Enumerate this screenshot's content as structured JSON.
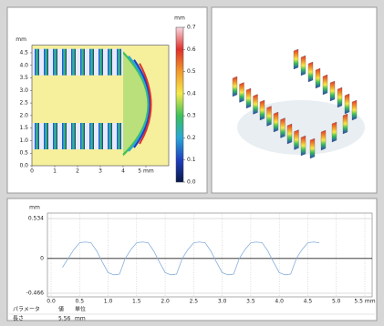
{
  "chart_data": [
    {
      "type": "heatmap",
      "y_label": "mm",
      "xlim": [
        0,
        6
      ],
      "xticks": [
        0,
        1,
        2,
        3,
        4,
        {
          "value": 5,
          "label": "5 mm"
        }
      ],
      "ylim": [
        0,
        4.8
      ],
      "yticks": [
        {
          "value": 0,
          "label": "0.0"
        },
        0.5,
        {
          "value": 1,
          "label": "1.0"
        },
        1.5,
        {
          "value": 2,
          "label": "2.0"
        },
        2.5,
        {
          "value": 3,
          "label": "3.0"
        },
        3.5,
        {
          "value": 4,
          "label": "4.0"
        },
        4.5
      ],
      "colorbar": {
        "label": "mm",
        "lim": [
          0,
          0.7
        ],
        "ticks": [
          {
            "value": 0,
            "label": "0.0"
          },
          0.1,
          0.2,
          0.3,
          0.4,
          0.5,
          0.6,
          0.7
        ],
        "colors": [
          "#0a1a4a",
          "#1f3fbf",
          "#2aa7d8",
          "#3cc05a",
          "#f4ea4a",
          "#f39a2b",
          "#e0302a",
          "#f7d8e0"
        ]
      }
    },
    {
      "type": "line",
      "y_label": "mm",
      "x": [
        0.2,
        0.3,
        0.4,
        0.5,
        0.6,
        0.7,
        0.8,
        0.9,
        1.0,
        1.1,
        1.2,
        1.3,
        1.4,
        1.5,
        1.6,
        1.7,
        1.8,
        1.9,
        2.0,
        2.1,
        2.2,
        2.3,
        2.4,
        2.5,
        2.6,
        2.7,
        2.8,
        2.9,
        3.0,
        3.1,
        3.2,
        3.3,
        3.4,
        3.5,
        3.6,
        3.7,
        3.8,
        3.9,
        4.0,
        4.1,
        4.2,
        4.3,
        4.4,
        4.5,
        4.6,
        4.7
      ],
      "series": [
        {
          "color": "#86aedb",
          "values": [
            -0.12,
            0,
            0.12,
            0.21,
            0.22,
            0.21,
            0.1,
            -0.05,
            -0.19,
            -0.22,
            -0.21,
            0,
            0.12,
            0.21,
            0.22,
            0.21,
            0.1,
            -0.05,
            -0.19,
            -0.22,
            -0.21,
            0,
            0.12,
            0.21,
            0.22,
            0.21,
            0.1,
            -0.05,
            -0.19,
            -0.22,
            -0.21,
            0,
            0.12,
            0.21,
            0.22,
            0.21,
            0.1,
            -0.05,
            -0.19,
            -0.22,
            -0.21,
            0,
            0.12,
            0.21,
            0.22,
            0.21
          ]
        }
      ],
      "xlim": [
        0,
        5.5
      ],
      "xticks": [
        {
          "value": 0,
          "label": "0.0"
        },
        0.5,
        {
          "value": 1,
          "label": "1.0"
        },
        1.5,
        {
          "value": 2,
          "label": "2.0"
        },
        2.5,
        {
          "value": 3,
          "label": "3.0"
        },
        3.5,
        {
          "value": 4,
          "label": "4.0"
        },
        4.5,
        {
          "value": 5,
          "label": "5.0"
        },
        {
          "value": 5.5,
          "label": "5.5 mm"
        }
      ],
      "ylim": [
        -0.466,
        0.534
      ],
      "yticks": [
        -0.466,
        0,
        0.534
      ],
      "grid": true
    }
  ],
  "table": {
    "header": [
      "パラメータ",
      "値",
      "単位"
    ],
    "rows": [
      [
        "長さ",
        "5.56",
        "mm"
      ]
    ]
  }
}
